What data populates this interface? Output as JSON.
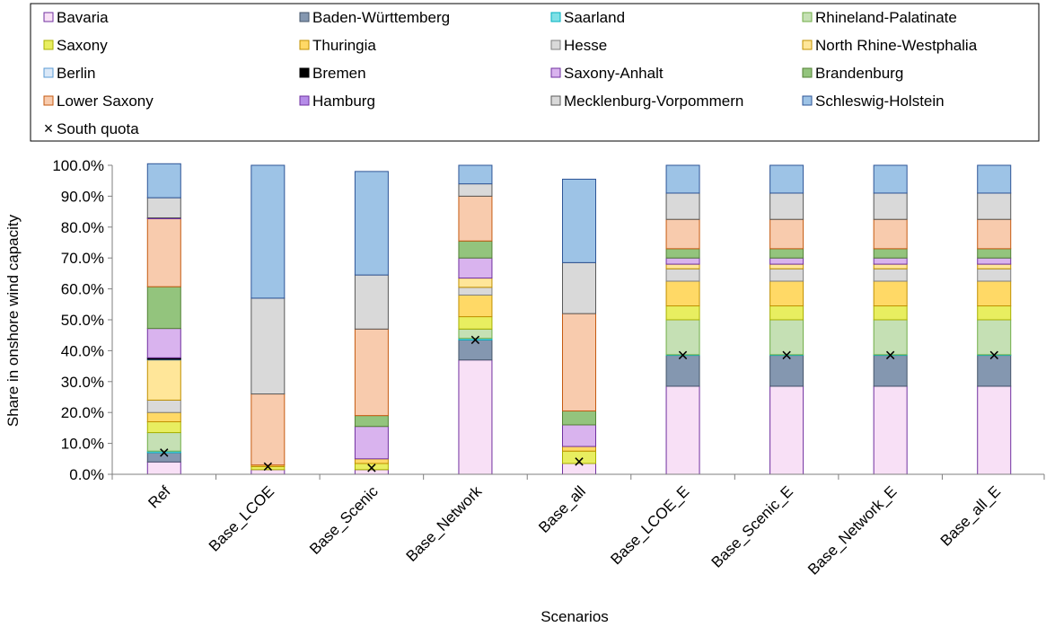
{
  "chart_data": {
    "type": "bar",
    "stacked": true,
    "ylabel": "Share in onshore wind capacity",
    "xlabel": "Scenarios",
    "ylim": [
      0,
      100
    ],
    "ytick_labels": [
      "0.0%",
      "10.0%",
      "20.0%",
      "30.0%",
      "40.0%",
      "50.0%",
      "60.0%",
      "70.0%",
      "80.0%",
      "90.0%",
      "100.0%"
    ],
    "categories": [
      "Ref",
      "Base_LCOE",
      "Base_Scenic",
      "Base_Network",
      "Base_all",
      "Base_LCOE_E",
      "Base_Scenic_E",
      "Base_Network_E",
      "Base_all_E"
    ],
    "series": [
      {
        "name": "Bavaria",
        "fill": "#f8e0f6",
        "stroke": "#7030a0",
        "values": [
          4,
          1.5,
          1.5,
          37,
          3.5,
          28.5,
          28.5,
          28.5,
          28.5
        ]
      },
      {
        "name": "Baden-Württemberg",
        "fill": "#8497b0",
        "stroke": "#44546a",
        "values": [
          3,
          0,
          0,
          6.5,
          0,
          10,
          10,
          10,
          10
        ]
      },
      {
        "name": "Saarland",
        "fill": "#7fe0e6",
        "stroke": "#00b0c0",
        "values": [
          0.5,
          0,
          0,
          0.5,
          0,
          0.2,
          0.2,
          0.2,
          0.2
        ]
      },
      {
        "name": "Rhineland-Palatinate",
        "fill": "#c5e0b4",
        "stroke": "#70ad47",
        "values": [
          6,
          0,
          0,
          3,
          0,
          11.3,
          11.3,
          11.3,
          11.3
        ]
      },
      {
        "name": "Saxony",
        "fill": "#e8ee60",
        "stroke": "#a8b000",
        "values": [
          3.5,
          1,
          2,
          4,
          4,
          4.5,
          4.5,
          4.5,
          4.5
        ]
      },
      {
        "name": "Thuringia",
        "fill": "#ffd966",
        "stroke": "#c09000",
        "values": [
          3,
          0.5,
          1.5,
          7,
          1.5,
          8,
          8,
          8,
          8
        ]
      },
      {
        "name": "Hesse",
        "fill": "#d9d9d9",
        "stroke": "#7f7f7f",
        "values": [
          4,
          0,
          0,
          2.5,
          0,
          4,
          4,
          4,
          4
        ]
      },
      {
        "name": "North Rhine-Westphalia",
        "fill": "#ffe699",
        "stroke": "#c09000",
        "values": [
          13,
          0,
          0,
          3,
          0,
          1.5,
          1.5,
          1.5,
          1.5
        ]
      },
      {
        "name": "Berlin",
        "fill": "#dae8f8",
        "stroke": "#5b9bd5",
        "values": [
          0.2,
          0,
          0,
          0,
          0,
          0,
          0,
          0,
          0
        ]
      },
      {
        "name": "Bremen",
        "fill": "#000000",
        "stroke": "#000000",
        "values": [
          0.5,
          0,
          0,
          0,
          0,
          0,
          0,
          0,
          0
        ]
      },
      {
        "name": "Saxony-Anhalt",
        "fill": "#d9b3ee",
        "stroke": "#7030a0",
        "values": [
          9.5,
          0,
          10.5,
          6.5,
          7,
          2,
          2,
          2,
          2
        ]
      },
      {
        "name": "Brandenburg",
        "fill": "#93c47d",
        "stroke": "#538135",
        "values": [
          13.5,
          0,
          3.5,
          5.5,
          4.5,
          3,
          3,
          3,
          3
        ]
      },
      {
        "name": "Lower Saxony",
        "fill": "#f8cbad",
        "stroke": "#c55a11",
        "values": [
          22,
          23,
          28,
          14.5,
          31.5,
          9.5,
          9.5,
          9.5,
          9.5
        ]
      },
      {
        "name": "Hamburg",
        "fill": "#b58ce8",
        "stroke": "#7030a0",
        "values": [
          0.3,
          0,
          0,
          0,
          0,
          0,
          0,
          0,
          0
        ]
      },
      {
        "name": "Mecklenburg-Vorpommern",
        "fill": "#d9d9d9",
        "stroke": "#595959",
        "values": [
          6.5,
          31,
          17.5,
          4,
          16.5,
          8.5,
          8.5,
          8.5,
          8.5
        ]
      },
      {
        "name": "Schleswig-Holstein",
        "fill": "#9dc3e6",
        "stroke": "#2e5597",
        "values": [
          11,
          43,
          33.5,
          6,
          27,
          9,
          9,
          9,
          9
        ]
      }
    ],
    "markers": {
      "name": "South quota",
      "symbol": "×",
      "values": [
        7,
        2.5,
        2,
        43.5,
        4,
        38.5,
        38.5,
        38.5,
        38.5
      ]
    },
    "legend": "top",
    "grid": false
  }
}
